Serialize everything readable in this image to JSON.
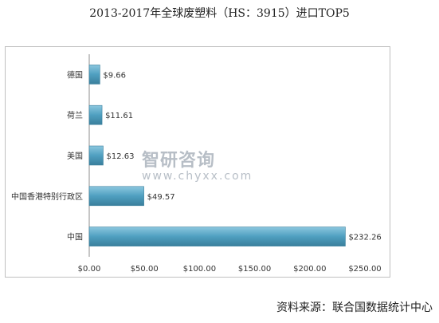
{
  "title": "2013-2017年全球废塑料（HS：3915）进口TOP5",
  "source": "资料来源：联合国数据统计中心",
  "watermark": {
    "brand": "智研咨询",
    "url": "www.chyxx.com"
  },
  "colors": {
    "bar": "#4f9fc0",
    "bar_dark": "#3a7f9c",
    "axis": "#8c8c8c"
  },
  "chart_data": {
    "type": "bar",
    "orientation": "horizontal",
    "categories": [
      "德国",
      "荷兰",
      "美国",
      "中国香港特别行政区",
      "中国"
    ],
    "values": [
      9.66,
      11.61,
      12.63,
      49.57,
      232.26
    ],
    "value_labels": [
      "$9.66",
      "$11.61",
      "$12.63",
      "$49.57",
      "$232.26"
    ],
    "xlim": [
      0,
      250
    ],
    "xticks": [
      0,
      50,
      100,
      150,
      200,
      250
    ],
    "xtick_labels": [
      "$0.00",
      "$50.00",
      "$100.00",
      "$150.00",
      "$200.00",
      "$250.00"
    ],
    "grid": false,
    "legend": "none"
  }
}
